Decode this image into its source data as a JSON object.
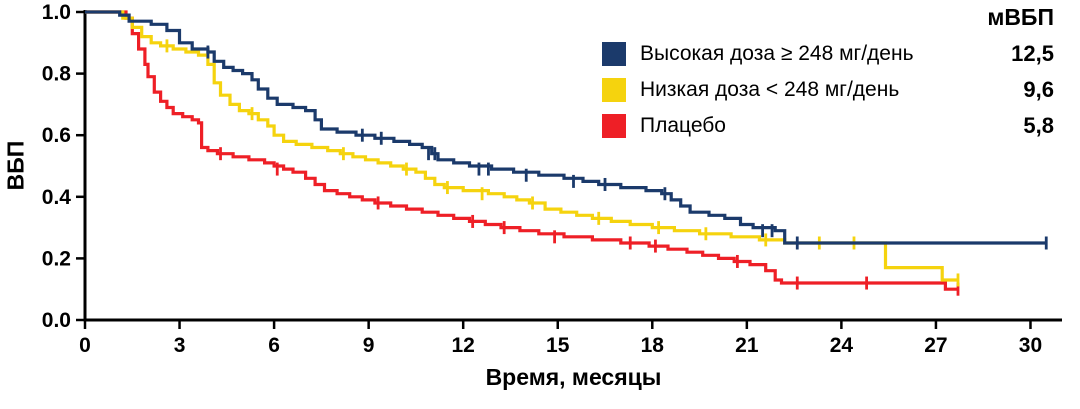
{
  "chart_data": {
    "type": "line",
    "subtype": "kaplan-meier-step",
    "title": "",
    "xlabel": "Время, месяцы",
    "ylabel": "ВБП",
    "xlim": [
      0,
      31
    ],
    "ylim": [
      0,
      1.0
    ],
    "xticks": [
      0,
      3,
      6,
      9,
      12,
      15,
      18,
      21,
      24,
      27,
      30
    ],
    "xtick_labels": [
      "0",
      "3",
      "6",
      "9",
      "12",
      "15",
      "18",
      "21",
      "24",
      "27",
      "30"
    ],
    "yticks": [
      0,
      0.2,
      0.4,
      0.6,
      0.8,
      1.0
    ],
    "ytick_labels": [
      "0.0",
      "0.2",
      "0.4",
      "0.6",
      "0.8",
      "1.0"
    ],
    "grid": false,
    "legend": {
      "position": "top-right",
      "value_header": "мВБП"
    },
    "series": [
      {
        "name": "Высокая доза ≥ 248 мг/день",
        "median_label": "12,5",
        "color": "#1b3a6b",
        "points": [
          [
            0,
            1.0
          ],
          [
            1.1,
            0.99
          ],
          [
            1.4,
            0.97
          ],
          [
            2.1,
            0.96
          ],
          [
            2.6,
            0.94
          ],
          [
            3.0,
            0.9
          ],
          [
            3.4,
            0.88
          ],
          [
            3.9,
            0.87
          ],
          [
            4.1,
            0.84
          ],
          [
            4.4,
            0.82
          ],
          [
            4.7,
            0.81
          ],
          [
            5.0,
            0.8
          ],
          [
            5.3,
            0.78
          ],
          [
            5.5,
            0.75
          ],
          [
            5.8,
            0.72
          ],
          [
            6.1,
            0.7
          ],
          [
            6.6,
            0.69
          ],
          [
            7.0,
            0.68
          ],
          [
            7.3,
            0.65
          ],
          [
            7.5,
            0.62
          ],
          [
            8.0,
            0.61
          ],
          [
            8.6,
            0.6
          ],
          [
            9.2,
            0.59
          ],
          [
            9.8,
            0.58
          ],
          [
            10.3,
            0.57
          ],
          [
            10.7,
            0.56
          ],
          [
            11.0,
            0.54
          ],
          [
            11.2,
            0.52
          ],
          [
            11.7,
            0.51
          ],
          [
            12.2,
            0.5
          ],
          [
            12.9,
            0.49
          ],
          [
            13.6,
            0.48
          ],
          [
            14.4,
            0.47
          ],
          [
            15.2,
            0.46
          ],
          [
            15.8,
            0.45
          ],
          [
            16.3,
            0.44
          ],
          [
            17.0,
            0.43
          ],
          [
            17.8,
            0.42
          ],
          [
            18.3,
            0.41
          ],
          [
            18.6,
            0.39
          ],
          [
            18.9,
            0.37
          ],
          [
            19.2,
            0.35
          ],
          [
            19.8,
            0.34
          ],
          [
            20.3,
            0.33
          ],
          [
            20.8,
            0.31
          ],
          [
            21.2,
            0.3
          ],
          [
            21.9,
            0.29
          ],
          [
            22.2,
            0.25
          ],
          [
            30.5,
            0.25
          ]
        ],
        "censors": [
          [
            3.9,
            0.87
          ],
          [
            8.8,
            0.6
          ],
          [
            9.4,
            0.59
          ],
          [
            10.9,
            0.54
          ],
          [
            11.1,
            0.54
          ],
          [
            12.5,
            0.49
          ],
          [
            12.8,
            0.49
          ],
          [
            14.0,
            0.47
          ],
          [
            15.5,
            0.45
          ],
          [
            16.5,
            0.44
          ],
          [
            18.4,
            0.41
          ],
          [
            21.5,
            0.29
          ],
          [
            21.8,
            0.29
          ],
          [
            22.6,
            0.25
          ],
          [
            30.5,
            0.25
          ]
        ]
      },
      {
        "name": "Низкая доза < 248 мг/день",
        "median_label": "9,6",
        "color": "#f5d30e",
        "points": [
          [
            0,
            1.0
          ],
          [
            1.2,
            0.98
          ],
          [
            1.5,
            0.95
          ],
          [
            1.8,
            0.92
          ],
          [
            2.1,
            0.9
          ],
          [
            2.4,
            0.89
          ],
          [
            2.8,
            0.88
          ],
          [
            3.2,
            0.87
          ],
          [
            3.6,
            0.86
          ],
          [
            3.9,
            0.83
          ],
          [
            4.1,
            0.77
          ],
          [
            4.3,
            0.73
          ],
          [
            4.6,
            0.7
          ],
          [
            4.9,
            0.68
          ],
          [
            5.2,
            0.67
          ],
          [
            5.5,
            0.65
          ],
          [
            5.8,
            0.63
          ],
          [
            6.0,
            0.6
          ],
          [
            6.3,
            0.58
          ],
          [
            6.7,
            0.57
          ],
          [
            7.2,
            0.56
          ],
          [
            7.7,
            0.55
          ],
          [
            8.1,
            0.54
          ],
          [
            8.5,
            0.53
          ],
          [
            8.9,
            0.52
          ],
          [
            9.3,
            0.51
          ],
          [
            9.7,
            0.5
          ],
          [
            10.1,
            0.49
          ],
          [
            10.5,
            0.48
          ],
          [
            10.8,
            0.46
          ],
          [
            11.1,
            0.44
          ],
          [
            11.4,
            0.43
          ],
          [
            12.0,
            0.42
          ],
          [
            12.8,
            0.41
          ],
          [
            13.3,
            0.4
          ],
          [
            13.7,
            0.39
          ],
          [
            14.1,
            0.38
          ],
          [
            14.6,
            0.36
          ],
          [
            15.1,
            0.35
          ],
          [
            15.6,
            0.34
          ],
          [
            16.1,
            0.33
          ],
          [
            16.7,
            0.32
          ],
          [
            17.3,
            0.31
          ],
          [
            18.0,
            0.3
          ],
          [
            18.7,
            0.29
          ],
          [
            19.5,
            0.28
          ],
          [
            20.5,
            0.27
          ],
          [
            21.4,
            0.26
          ],
          [
            22.2,
            0.25
          ],
          [
            25.4,
            0.17
          ],
          [
            27.2,
            0.13
          ],
          [
            27.7,
            0.13
          ]
        ],
        "censors": [
          [
            2.6,
            0.89
          ],
          [
            5.3,
            0.67
          ],
          [
            8.2,
            0.54
          ],
          [
            10.2,
            0.49
          ],
          [
            11.5,
            0.43
          ],
          [
            12.6,
            0.41
          ],
          [
            14.2,
            0.38
          ],
          [
            16.3,
            0.33
          ],
          [
            18.2,
            0.3
          ],
          [
            19.7,
            0.28
          ],
          [
            21.6,
            0.26
          ],
          [
            23.3,
            0.25
          ],
          [
            24.4,
            0.25
          ],
          [
            27.7,
            0.13
          ]
        ]
      },
      {
        "name": "Плацебо",
        "median_label": "5,8",
        "color": "#ee1f26",
        "points": [
          [
            0,
            1.0
          ],
          [
            1.3,
            0.98
          ],
          [
            1.5,
            0.93
          ],
          [
            1.7,
            0.88
          ],
          [
            1.9,
            0.83
          ],
          [
            2.0,
            0.79
          ],
          [
            2.2,
            0.74
          ],
          [
            2.4,
            0.71
          ],
          [
            2.6,
            0.69
          ],
          [
            2.8,
            0.67
          ],
          [
            3.1,
            0.66
          ],
          [
            3.4,
            0.65
          ],
          [
            3.6,
            0.64
          ],
          [
            3.7,
            0.56
          ],
          [
            3.9,
            0.55
          ],
          [
            4.2,
            0.54
          ],
          [
            4.7,
            0.53
          ],
          [
            5.2,
            0.52
          ],
          [
            5.7,
            0.51
          ],
          [
            6.0,
            0.5
          ],
          [
            6.3,
            0.49
          ],
          [
            6.6,
            0.48
          ],
          [
            7.0,
            0.46
          ],
          [
            7.3,
            0.44
          ],
          [
            7.6,
            0.42
          ],
          [
            8.0,
            0.41
          ],
          [
            8.4,
            0.4
          ],
          [
            8.8,
            0.39
          ],
          [
            9.2,
            0.38
          ],
          [
            9.7,
            0.37
          ],
          [
            10.2,
            0.36
          ],
          [
            10.7,
            0.35
          ],
          [
            11.2,
            0.34
          ],
          [
            11.7,
            0.33
          ],
          [
            12.2,
            0.32
          ],
          [
            12.7,
            0.31
          ],
          [
            13.2,
            0.3
          ],
          [
            13.8,
            0.29
          ],
          [
            14.4,
            0.28
          ],
          [
            15.2,
            0.27
          ],
          [
            16.1,
            0.26
          ],
          [
            17.0,
            0.25
          ],
          [
            17.9,
            0.24
          ],
          [
            18.5,
            0.23
          ],
          [
            19.1,
            0.22
          ],
          [
            19.6,
            0.21
          ],
          [
            20.1,
            0.2
          ],
          [
            20.6,
            0.19
          ],
          [
            21.1,
            0.18
          ],
          [
            21.6,
            0.16
          ],
          [
            21.9,
            0.13
          ],
          [
            22.1,
            0.12
          ],
          [
            27.3,
            0.1
          ],
          [
            27.7,
            0.1
          ]
        ],
        "censors": [
          [
            4.3,
            0.54
          ],
          [
            6.1,
            0.49
          ],
          [
            9.3,
            0.38
          ],
          [
            12.3,
            0.32
          ],
          [
            13.3,
            0.3
          ],
          [
            14.9,
            0.27
          ],
          [
            17.3,
            0.25
          ],
          [
            18.1,
            0.24
          ],
          [
            20.7,
            0.19
          ],
          [
            22.6,
            0.12
          ],
          [
            24.8,
            0.12
          ],
          [
            27.7,
            0.1
          ]
        ]
      }
    ]
  }
}
